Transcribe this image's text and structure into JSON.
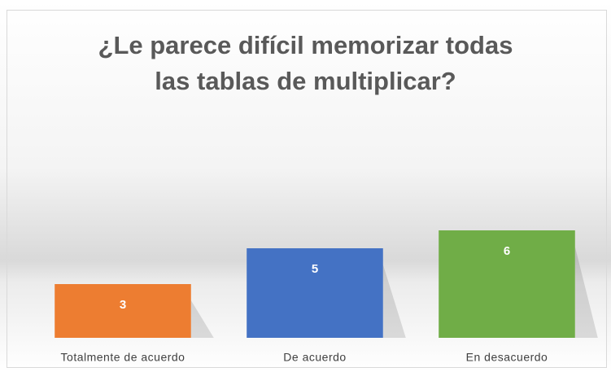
{
  "chart_data": {
    "type": "bar",
    "title": "¿Le parece difícil memorizar todas las tablas de multiplicar?",
    "categories": [
      "Totalmente de acuerdo",
      "De acuerdo",
      "En desacuerdo"
    ],
    "values": [
      3,
      5,
      6
    ],
    "colors": [
      "#ed7d31",
      "#4472c4",
      "#70ad47"
    ],
    "ylim": [
      0,
      14
    ]
  }
}
